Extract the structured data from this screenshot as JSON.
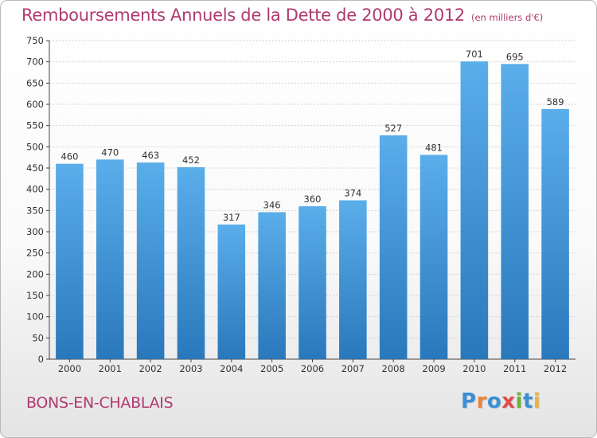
{
  "title": "Remboursements Annuels de la Dette de 2000 à 2012",
  "unit": "(en milliers d'€)",
  "location": "BONS-EN-CHABLAIS",
  "brand": {
    "text": "Proxiti",
    "letter_colors": [
      "#3a8fd6",
      "#e8833a",
      "#3a8fd6",
      "#e34a4a",
      "#6db33f",
      "#3a8fd6",
      "#e8b33a"
    ]
  },
  "colors": {
    "bar_top": "#5aaeea",
    "bar_bottom": "#2a78bc",
    "title": "#b03a6e",
    "axis": "#444444"
  },
  "chart_data": {
    "type": "bar",
    "categories": [
      "2000",
      "2001",
      "2002",
      "2003",
      "2004",
      "2005",
      "2006",
      "2007",
      "2008",
      "2009",
      "2010",
      "2011",
      "2012"
    ],
    "values": [
      460,
      470,
      463,
      452,
      317,
      346,
      360,
      374,
      527,
      481,
      701,
      695,
      589
    ],
    "yticks": [
      0,
      50,
      100,
      150,
      200,
      250,
      300,
      350,
      400,
      450,
      500,
      550,
      600,
      650,
      700,
      750
    ],
    "ylim": [
      0,
      750
    ],
    "grid": true,
    "data_labels": true
  }
}
